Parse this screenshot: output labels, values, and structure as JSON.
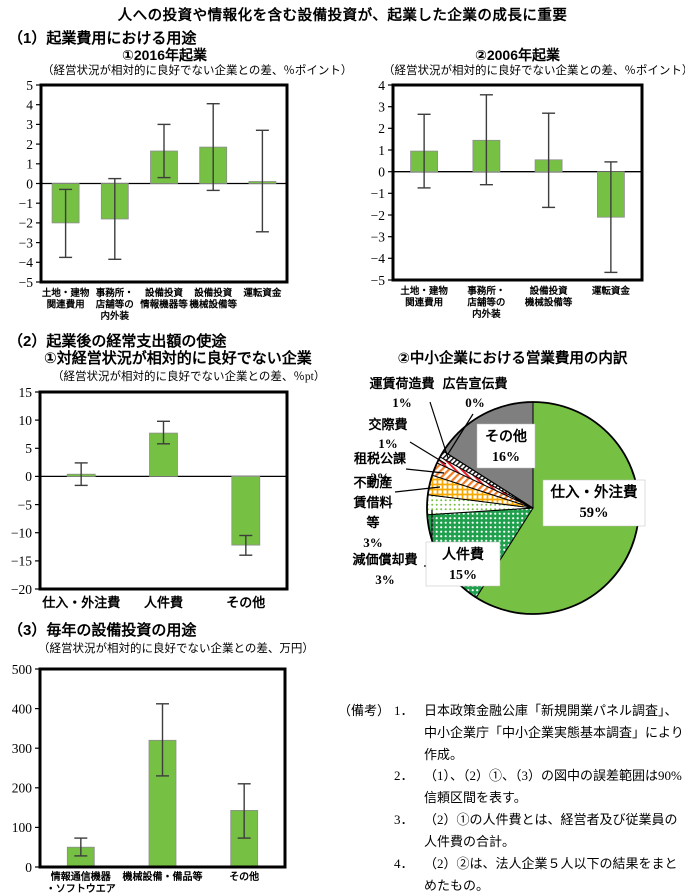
{
  "page_title": "人への投資や情報化を含む設備投資が、起業した企業の成長に重要",
  "sections": {
    "s1": "（1）起業費用における用途",
    "s2": "（2）起業後の経常支出額の使途",
    "s3": "（3）毎年の設備投資の用途"
  },
  "colors": {
    "bar_green": "#76C043",
    "bar_edge": "#8e8e8e",
    "error": "#3d3d3d",
    "pie_green_dark": "#1FA04C",
    "gray": "#7F7F7F",
    "orange": "#F07E26",
    "orange_yellow": "#F5A800",
    "red": "#E62129"
  },
  "chart_data": [
    {
      "id": "chart-2016",
      "type": "bar",
      "title": "①2016年起業",
      "subtitle": "（経営状況が相対的に良好でない企業との差、％ポイント）",
      "ylabel": "",
      "ylim": [
        -5,
        5
      ],
      "ystep": 1,
      "categories": [
        [
          "土地・建物",
          "関連費用"
        ],
        [
          "事務所・",
          "店舗等の",
          "内外装"
        ],
        [
          "設備投資",
          "情報機器等"
        ],
        [
          "設備投資",
          "機械設備等"
        ],
        [
          "運転資金"
        ]
      ],
      "values": [
        -2.0,
        -1.8,
        1.65,
        1.85,
        0.1
      ],
      "ci_low": [
        -3.75,
        -3.85,
        0.3,
        -0.35,
        -2.45
      ],
      "ci_high": [
        -0.3,
        0.25,
        3.0,
        4.05,
        2.7
      ]
    },
    {
      "id": "chart-2006",
      "type": "bar",
      "title": "②2006年起業",
      "subtitle": "（経営状況が相対的に良好でない企業との差、％ポイント）",
      "ylim": [
        -5,
        4
      ],
      "ystep": 1,
      "categories": [
        [
          "土地・建物",
          "関連費用"
        ],
        [
          "事務所・",
          "店舗等の",
          "内外装"
        ],
        [
          "設備投資",
          "機械設備等"
        ],
        [
          "運転資金"
        ]
      ],
      "values": [
        0.95,
        1.45,
        0.55,
        -2.1
      ],
      "ci_low": [
        -0.75,
        -0.6,
        -1.65,
        -4.65
      ],
      "ci_high": [
        2.65,
        3.55,
        2.7,
        0.45
      ]
    },
    {
      "id": "chart-expense",
      "type": "bar",
      "title": "①対経営状況が相対的に良好でない企業",
      "subtitle": "（経営状況が相対的に良好でない企業との差、％pt）",
      "ylim": [
        -20,
        15
      ],
      "ystep": 5,
      "categories": [
        [
          "仕入・外注費"
        ],
        [
          "人件費"
        ],
        [
          "その他"
        ]
      ],
      "values": [
        0.4,
        7.7,
        -12.2
      ],
      "ci_low": [
        -1.6,
        5.8,
        -14.0
      ],
      "ci_high": [
        2.4,
        9.8,
        -10.5
      ]
    },
    {
      "id": "pie-opex",
      "type": "pie",
      "title": "②中小企業における営業費用の内訳",
      "slices": [
        {
          "label": "仕入・外注費",
          "pct": 59,
          "pattern": "solid-green",
          "label_lines": [
            "仕入・外注費",
            "59%"
          ]
        },
        {
          "label": "人件費",
          "pct": 15,
          "pattern": "dots-green",
          "label_lines": [
            "人件費",
            "15%"
          ]
        },
        {
          "label": "減価償却費",
          "pct": 3,
          "pattern": "dots-lightgreen",
          "label_lines": [
            "減価償却費",
            "3%"
          ]
        },
        {
          "label": "不動産賃借料等",
          "pct": 3,
          "pattern": "check-yellow",
          "label_lines": [
            "不動産",
            "賃借料",
            "等",
            "3%"
          ]
        },
        {
          "label": "租税公課",
          "pct": 2,
          "pattern": "diag-orange",
          "label_lines": [
            "租税公課",
            "2%"
          ]
        },
        {
          "label": "交際費",
          "pct": 1,
          "pattern": "diag-red",
          "label_lines": [
            "交際費",
            "1%"
          ]
        },
        {
          "label": "運賃荷造費",
          "pct": 1,
          "pattern": "diag-dark",
          "label_lines": [
            "運賃荷造費",
            "1%"
          ]
        },
        {
          "label": "広告宣伝費",
          "pct": 0,
          "pattern": "none",
          "label_lines": [
            "広告宣伝費",
            "0%"
          ]
        },
        {
          "label": "その他",
          "pct": 16,
          "pattern": "solid-gray",
          "label_lines": [
            "その他",
            "16%"
          ]
        }
      ]
    },
    {
      "id": "chart-capex",
      "type": "bar",
      "title": "",
      "subtitle": "（経営状況が相対的に良好でない企業との差、万円）",
      "ylim": [
        0,
        500
      ],
      "ystep": 100,
      "categories": [
        [
          "情報通信機器",
          "・ソフトウエア"
        ],
        [
          "機械設備・備品等"
        ],
        [
          "その他"
        ]
      ],
      "values": [
        50,
        320,
        143
      ],
      "ci_low": [
        28,
        230,
        73
      ],
      "ci_high": [
        73,
        412,
        210
      ]
    }
  ],
  "notes": {
    "label": "（備考）",
    "items": [
      {
        "num": "1．",
        "text": "日本政策金融公庫「新規開業パネル調査」、中小企業庁「中小企業実態基本調査」により作成。"
      },
      {
        "num": "2．",
        "text": "（1）、（2）①、（3）の図中の誤差範囲は90%信頼区間を表す。"
      },
      {
        "num": "3．",
        "text": "（2）①の人件費とは、経営者及び従業員の人件費の合計。"
      },
      {
        "num": "4．",
        "text": "（2）②は、法人企業５人以下の結果をまとめたもの。"
      }
    ]
  }
}
